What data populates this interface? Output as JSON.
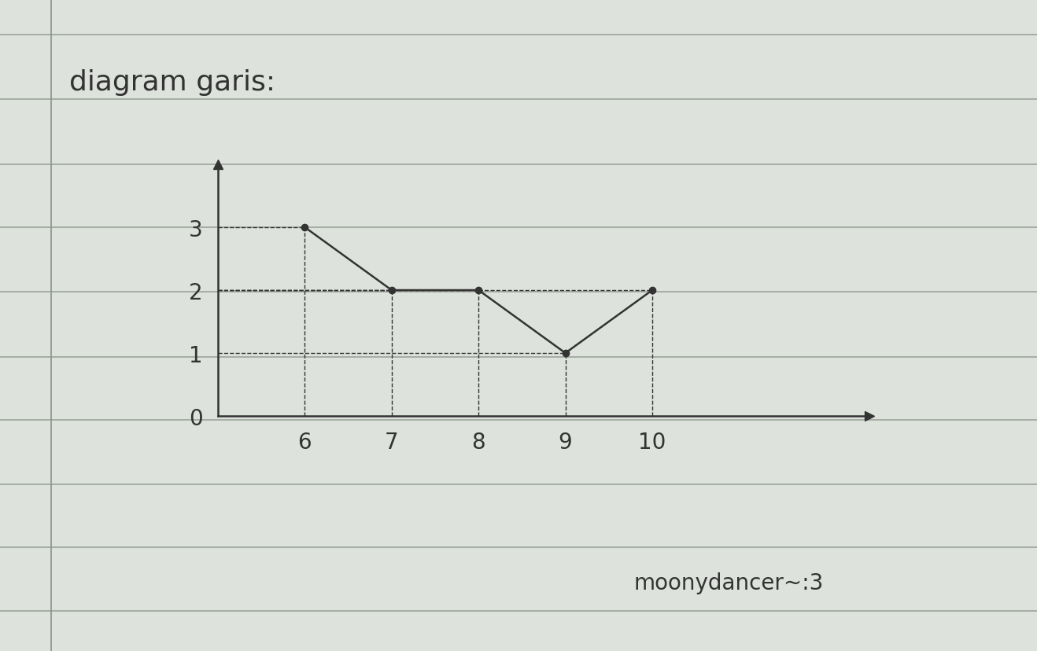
{
  "chart_data": {
    "type": "line",
    "title": "diagram garis:",
    "annotation": "moonydancer~:3",
    "categories": [
      "6",
      "7",
      "8",
      "9",
      "10"
    ],
    "values": [
      3,
      2,
      2,
      1,
      2
    ],
    "color": "#333333",
    "marker": "o",
    "line_style": "solid",
    "ylim": [
      0,
      4
    ],
    "yticks": [
      0,
      1,
      2,
      3
    ],
    "grid": false
  }
}
